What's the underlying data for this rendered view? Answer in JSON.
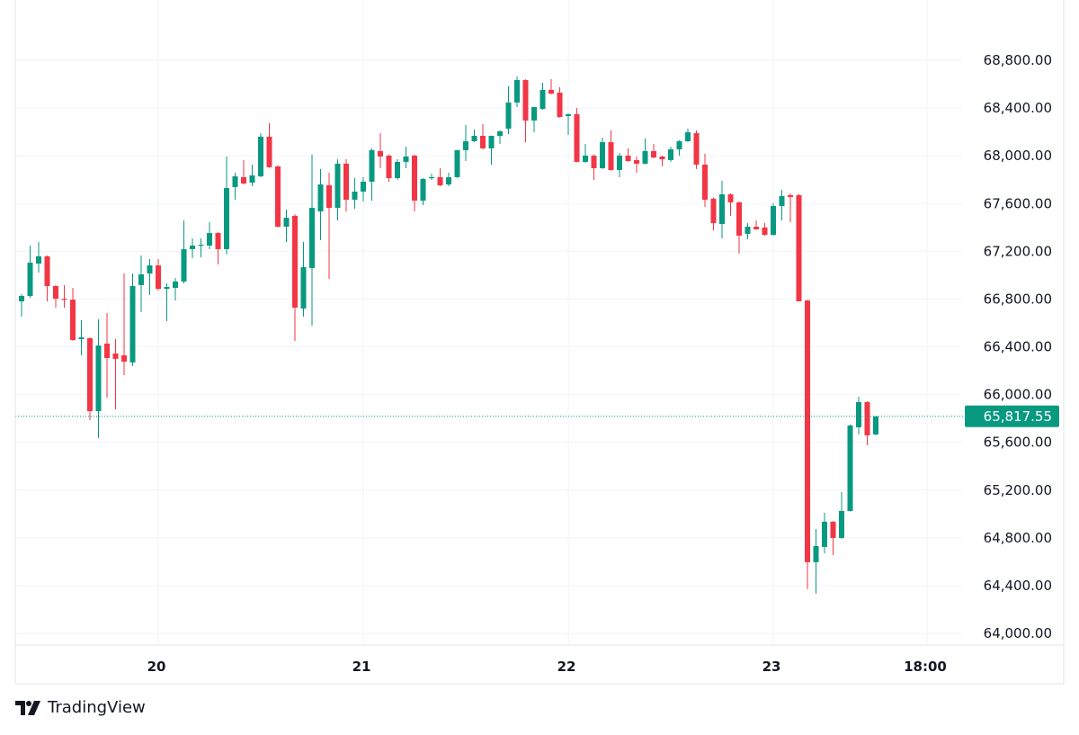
{
  "chart_data": {
    "type": "candlestick",
    "interval": "1h",
    "x_ticks": [
      "20",
      "21",
      "22",
      "23",
      "18:00"
    ],
    "y_ticks": [
      "64,000.00",
      "64,400.00",
      "64,800.00",
      "65,200.00",
      "65,600.00",
      "66,000.00",
      "66,400.00",
      "66,800.00",
      "67,200.00",
      "67,600.00",
      "68,000.00",
      "68,400.00",
      "68,800.00"
    ],
    "ylim": [
      63900,
      68900
    ],
    "grid": true,
    "last_price_label": "65,817.55",
    "last_price": 65817.55,
    "colors": {
      "up": "#089981",
      "down": "#F23645",
      "grid": "#f0f3fa",
      "text": "#131722"
    },
    "columns": [
      "time",
      "open",
      "high",
      "low",
      "close"
    ],
    "candles": [
      [
        "19 08:00",
        66781,
        66841,
        66653,
        66826
      ],
      [
        "19 09:00",
        66826,
        67248,
        66810,
        67105
      ],
      [
        "19 10:00",
        67097,
        67278,
        67022,
        67158
      ],
      [
        "19 11:00",
        67158,
        67165,
        66781,
        66909
      ],
      [
        "19 12:00",
        66909,
        66917,
        66728,
        66803
      ],
      [
        "19 13:00",
        66803,
        66917,
        66728,
        66795
      ],
      [
        "19 14:00",
        66795,
        66894,
        66450,
        66457
      ],
      [
        "19 15:00",
        66464,
        66623,
        66329,
        66479
      ],
      [
        "19 16:00",
        66472,
        66480,
        65786,
        65861
      ],
      [
        "19 17:00",
        65861,
        66630,
        65636,
        66411
      ],
      [
        "19 18:00",
        66427,
        66683,
        65974,
        66306
      ],
      [
        "19 19:00",
        66344,
        66464,
        65877,
        66299
      ],
      [
        "19 20:00",
        66329,
        67014,
        66163,
        66276
      ],
      [
        "19 21:00",
        66269,
        67014,
        66238,
        66909
      ],
      [
        "19 22:00",
        66917,
        67165,
        66690,
        67007
      ],
      [
        "19 23:00",
        67014,
        67135,
        66834,
        67082
      ],
      [
        "20 00:00",
        67082,
        67135,
        66870,
        66886
      ],
      [
        "20 01:00",
        66886,
        66932,
        66615,
        66901
      ],
      [
        "20 02:00",
        66894,
        66977,
        66788,
        66947
      ],
      [
        "20 03:00",
        66947,
        67459,
        66930,
        67218
      ],
      [
        "20 04:00",
        67218,
        67308,
        67142,
        67248
      ],
      [
        "20 05:00",
        67248,
        67308,
        67150,
        67255
      ],
      [
        "20 06:00",
        67248,
        67444,
        67218,
        67353
      ],
      [
        "20 07:00",
        67353,
        67360,
        67090,
        67218
      ],
      [
        "20 08:00",
        67218,
        67994,
        67173,
        67730
      ],
      [
        "20 09:00",
        67738,
        67858,
        67632,
        67828
      ],
      [
        "20 10:00",
        67821,
        67964,
        67760,
        67768
      ],
      [
        "20 11:00",
        67775,
        67926,
        67745,
        67836
      ],
      [
        "20 12:00",
        67828,
        68190,
        67820,
        68160
      ],
      [
        "20 13:00",
        68160,
        68273,
        67900,
        67904
      ],
      [
        "20 14:00",
        67911,
        67920,
        67400,
        67406
      ],
      [
        "20 15:00",
        67406,
        67549,
        67278,
        67481
      ],
      [
        "20 16:00",
        67497,
        67510,
        66449,
        66728
      ],
      [
        "20 17:00",
        66721,
        67278,
        66653,
        67067
      ],
      [
        "20 18:00",
        67060,
        68009,
        66577,
        67564
      ],
      [
        "20 19:00",
        67534,
        67889,
        67293,
        67760
      ],
      [
        "20 20:00",
        67753,
        67858,
        66969,
        67564
      ],
      [
        "20 21:00",
        67564,
        67971,
        67459,
        67934
      ],
      [
        "20 22:00",
        67934,
        67971,
        67534,
        67632
      ],
      [
        "20 23:00",
        67632,
        67813,
        67557,
        67700
      ],
      [
        "21 00:00",
        67700,
        67821,
        67617,
        67783
      ],
      [
        "21 01:00",
        67783,
        68062,
        67624,
        68047
      ],
      [
        "21 02:00",
        68039,
        68190,
        67896,
        67994
      ],
      [
        "21 03:00",
        68001,
        68010,
        67783,
        67813
      ],
      [
        "21 04:00",
        67813,
        67971,
        67800,
        67949
      ],
      [
        "21 05:00",
        67949,
        68077,
        67896,
        67994
      ],
      [
        "21 06:00",
        68001,
        68010,
        67534,
        67624
      ],
      [
        "21 07:00",
        67624,
        67815,
        67587,
        67806
      ],
      [
        "21 08:00",
        67813,
        67851,
        67798,
        67821
      ],
      [
        "21 09:00",
        67821,
        67896,
        67745,
        67753
      ],
      [
        "21 10:00",
        67760,
        67858,
        67745,
        67821
      ],
      [
        "21 11:00",
        67821,
        68047,
        67815,
        68047
      ],
      [
        "21 12:00",
        68047,
        68258,
        67956,
        68122
      ],
      [
        "21 13:00",
        68122,
        68220,
        68115,
        68167
      ],
      [
        "21 14:00",
        68167,
        68265,
        68055,
        68062
      ],
      [
        "21 15:00",
        68062,
        68170,
        67926,
        68167
      ],
      [
        "21 16:00",
        68167,
        68212,
        68099,
        68205
      ],
      [
        "21 17:00",
        68227,
        68582,
        68182,
        68446
      ],
      [
        "21 18:00",
        68446,
        68665,
        68408,
        68634
      ],
      [
        "21 19:00",
        68634,
        68640,
        68114,
        68295
      ],
      [
        "21 20:00",
        68295,
        68410,
        68197,
        68408
      ],
      [
        "21 21:00",
        68393,
        68612,
        68385,
        68552
      ],
      [
        "21 22:00",
        68552,
        68642,
        68515,
        68521
      ],
      [
        "21 23:00",
        68529,
        68574,
        68320,
        68325
      ],
      [
        "22 00:00",
        68333,
        68356,
        68175,
        68348
      ],
      [
        "22 01:00",
        68348,
        68401,
        67945,
        67949
      ],
      [
        "22 02:00",
        67949,
        68099,
        67940,
        68001
      ],
      [
        "22 03:00",
        68001,
        68010,
        67798,
        67896
      ],
      [
        "22 04:00",
        67896,
        68152,
        67890,
        68114
      ],
      [
        "22 05:00",
        68114,
        68212,
        67875,
        67881
      ],
      [
        "22 06:00",
        67881,
        68024,
        67821,
        68001
      ],
      [
        "22 07:00",
        68001,
        68062,
        67950,
        67956
      ],
      [
        "22 08:00",
        67964,
        67994,
        67858,
        67934
      ],
      [
        "22 09:00",
        67934,
        68145,
        67928,
        68039
      ],
      [
        "22 10:00",
        68039,
        68099,
        67980,
        67986
      ],
      [
        "22 11:00",
        67994,
        68000,
        67911,
        67971
      ],
      [
        "22 12:00",
        67964,
        68077,
        67949,
        68054
      ],
      [
        "22 13:00",
        68054,
        68130,
        68001,
        68122
      ],
      [
        "22 14:00",
        68122,
        68227,
        68115,
        68197
      ],
      [
        "22 15:00",
        68190,
        68212,
        67889,
        67926
      ],
      [
        "22 16:00",
        67926,
        68016,
        67572,
        67632
      ],
      [
        "22 17:00",
        67640,
        67650,
        67376,
        67436
      ],
      [
        "22 18:00",
        67429,
        67790,
        67308,
        67677
      ],
      [
        "22 19:00",
        67677,
        67685,
        67497,
        67610
      ],
      [
        "22 20:00",
        67610,
        67617,
        67180,
        67331
      ],
      [
        "22 21:00",
        67346,
        67436,
        67301,
        67406
      ],
      [
        "22 22:00",
        67406,
        67459,
        67380,
        67384
      ],
      [
        "22 23:00",
        67399,
        67436,
        67330,
        67338
      ],
      [
        "23 00:00",
        67338,
        67602,
        67330,
        67579
      ],
      [
        "23 01:00",
        67579,
        67715,
        67459,
        67662
      ],
      [
        "23 02:00",
        67670,
        67685,
        67444,
        67655
      ],
      [
        "23 03:00",
        67670,
        67680,
        66781,
        66781
      ],
      [
        "23 04:00",
        66788,
        66795,
        64370,
        64596
      ],
      [
        "23 05:00",
        64596,
        64874,
        64333,
        64731
      ],
      [
        "23 06:00",
        64724,
        65010,
        64671,
        64935
      ],
      [
        "23 07:00",
        64935,
        64940,
        64656,
        64799
      ],
      [
        "23 08:00",
        64799,
        65183,
        64790,
        65025
      ],
      [
        "23 09:00",
        65025,
        65749,
        65020,
        65741
      ],
      [
        "23 10:00",
        65726,
        65982,
        65666,
        65937
      ],
      [
        "23 11:00",
        65937,
        65945,
        65575,
        65658
      ],
      [
        "23 12:00",
        65666,
        65817.55,
        65660,
        65817.55
      ]
    ]
  },
  "branding": {
    "name": "TradingView"
  }
}
